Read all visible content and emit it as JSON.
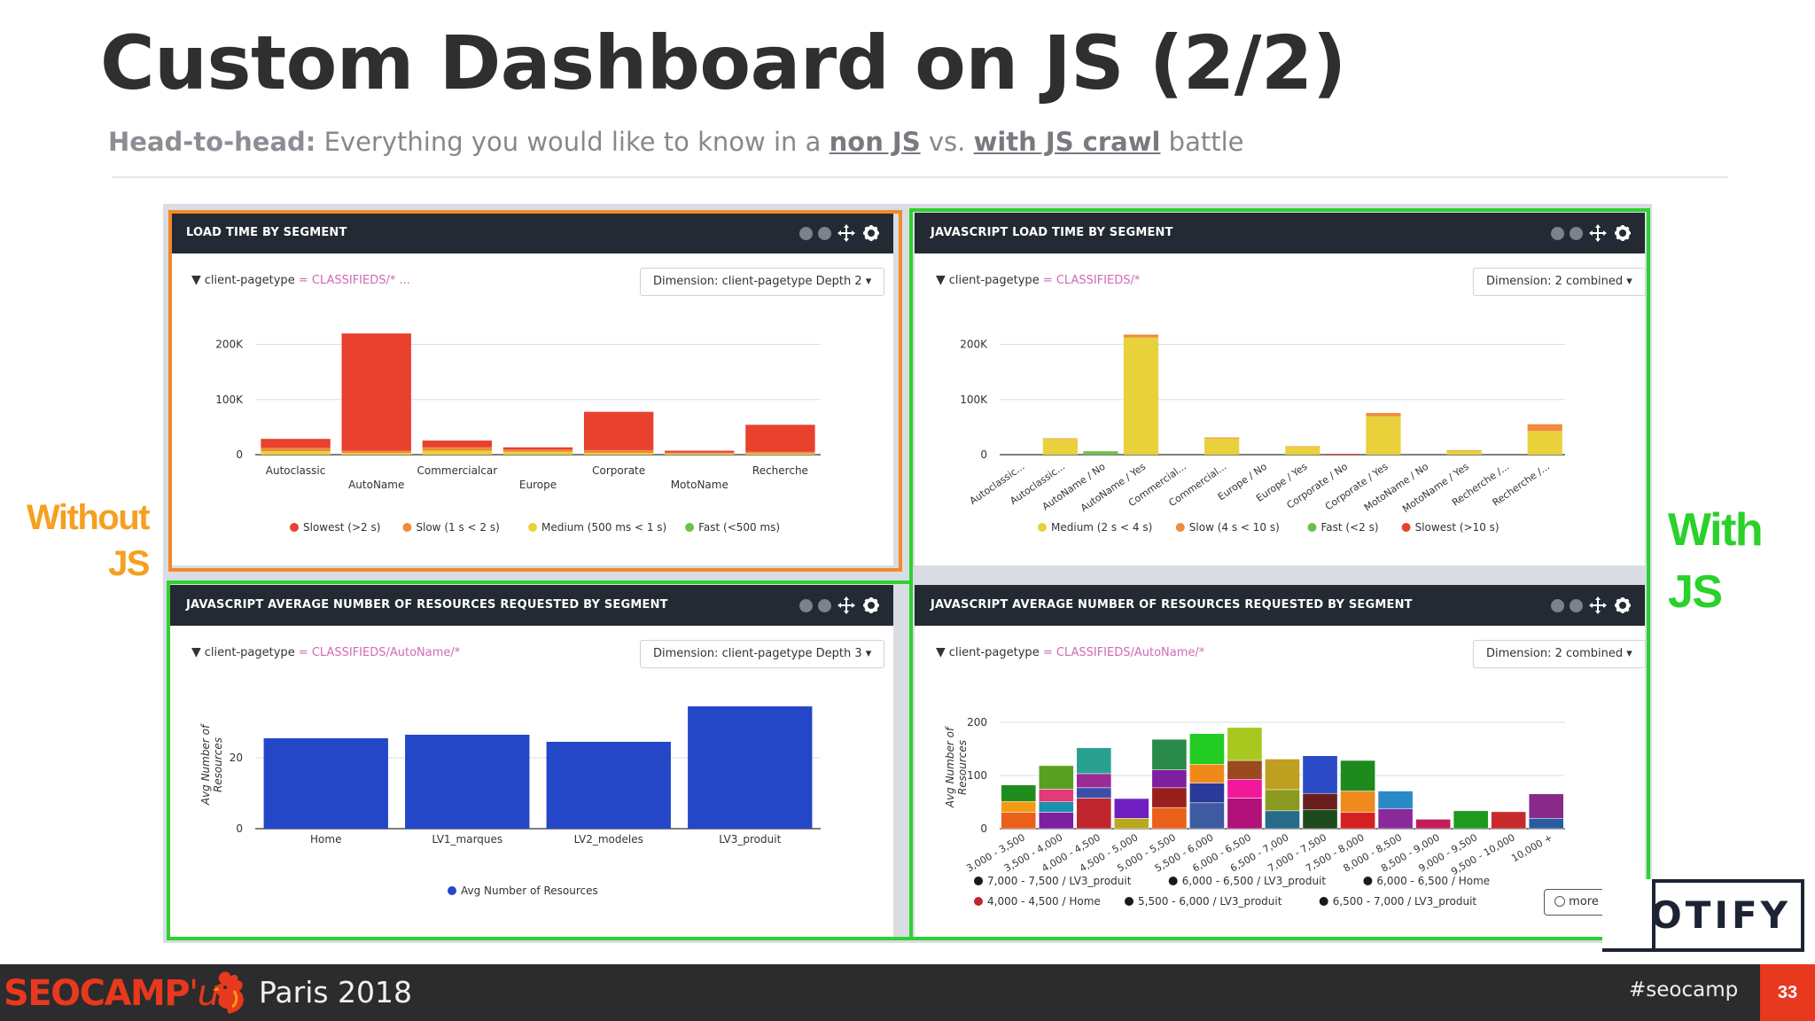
{
  "slide": {
    "title": "Custom Dashboard on JS (2/2)",
    "subtitle": {
      "lead": "Head-to-head:",
      "text1": " Everything you would like to know in a ",
      "link1": "non JS",
      "text2": " vs. ",
      "link2": "with JS crawl",
      "text3": " battle"
    },
    "label_without_1": "Without",
    "label_without_2": "JS",
    "label_with_1": "With",
    "label_with_2": "JS",
    "colors": {
      "orange_frame": "#f08a2a",
      "green_frame": "#2fd12f",
      "brand_red": "#e8381d"
    }
  },
  "panels": {
    "p1": {
      "title": "LOAD TIME BY SEGMENT",
      "filter_key": "client-pagetype",
      "filter_value": "= CLASSIFIEDS/* ...",
      "dimension": "Dimension: client-pagetype Depth 2 ▾"
    },
    "p2": {
      "title": "JAVASCRIPT LOAD TIME BY SEGMENT",
      "filter_key": "client-pagetype",
      "filter_value": "= CLASSIFIEDS/*",
      "dimension": "Dimension: 2 combined ▾"
    },
    "p3": {
      "title": "JAVASCRIPT AVERAGE NUMBER OF RESOURCES REQUESTED BY SEGMENT",
      "filter_key": "client-pagetype",
      "filter_value": "= CLASSIFIEDS/AutoName/*",
      "dimension": "Dimension: client-pagetype Depth 3 ▾"
    },
    "p4": {
      "title": "JAVASCRIPT AVERAGE NUMBER OF RESOURCES REQUESTED BY SEGMENT",
      "filter_key": "client-pagetype",
      "filter_value": "= CLASSIFIEDS/AutoName/*",
      "dimension": "Dimension: 2 combined ▾",
      "more_label": "more"
    }
  },
  "chart_data": [
    {
      "type": "bar",
      "stacked": true,
      "title": "LOAD TIME BY SEGMENT",
      "categories": [
        "Autoclassic",
        "AutoName",
        "Commercialcar",
        "Europe",
        "Corporate",
        "MotoName",
        "Recherche"
      ],
      "yticks": [
        "0",
        "100K",
        "200K"
      ],
      "ylim": [
        0,
        225000
      ],
      "legend": "bottom",
      "series": [
        {
          "name": "Fast (<500 ms)",
          "color": "#6cc04a",
          "values": [
            0,
            0,
            0,
            0,
            0,
            0,
            0
          ]
        },
        {
          "name": "Medium (500 ms < 1 s)",
          "color": "#e8d13a",
          "values": [
            6000,
            3000,
            7000,
            5000,
            3000,
            2000,
            2000
          ]
        },
        {
          "name": "Slow (1 s < 2 s)",
          "color": "#f08a3c",
          "values": [
            6000,
            4000,
            6000,
            4000,
            5000,
            1500,
            3000
          ]
        },
        {
          "name": "Slowest (>2 s)",
          "color": "#e8412e",
          "values": [
            16000,
            208000,
            12000,
            4000,
            68000,
            3500,
            48000
          ]
        }
      ]
    },
    {
      "type": "bar",
      "stacked": true,
      "title": "JAVASCRIPT LOAD TIME BY SEGMENT",
      "categories": [
        "Autoclassic...",
        "Autoclassic...",
        "AutoName / No",
        "AutoName / Yes",
        "Commercial...",
        "Commercial...",
        "Europe / No",
        "Europe / Yes",
        "Corporate / No",
        "Corporate / Yes",
        "MotoName / No",
        "MotoName / Yes",
        "Recherche /...",
        "Recherche /..."
      ],
      "yticks": [
        "0",
        "100K",
        "200K"
      ],
      "ylim": [
        0,
        225000
      ],
      "legend": "bottom",
      "series": [
        {
          "name": "Medium (2 s < 4 s)",
          "color": "#e8d13a",
          "values": [
            0,
            28000,
            0,
            208000,
            0,
            29000,
            0,
            14000,
            0,
            68000,
            0,
            7000,
            0,
            42000
          ]
        },
        {
          "name": "Slow (4 s < 10 s)",
          "color": "#f08a3c",
          "values": [
            0,
            1000,
            0,
            5000,
            0,
            1500,
            0,
            1000,
            0,
            6000,
            0,
            1000,
            0,
            12000
          ]
        },
        {
          "name": "Fast (<2 s)",
          "color": "#6cc04a",
          "values": [
            0,
            0,
            6000,
            0,
            0,
            0,
            0,
            0,
            0,
            0,
            0,
            0,
            0,
            0
          ]
        },
        {
          "name": "Slowest (>10 s)",
          "color": "#e8412e",
          "values": [
            0,
            0,
            0,
            0,
            0,
            0,
            0,
            0,
            1500,
            0,
            0,
            0,
            0,
            0
          ]
        }
      ]
    },
    {
      "type": "bar",
      "title": "JAVASCRIPT AVERAGE NUMBER OF RESOURCES REQUESTED BY SEGMENT",
      "categories": [
        "Home",
        "LV1_marques",
        "LV2_modeles",
        "LV3_produit"
      ],
      "ylabel": "Avg Number of Resources",
      "yticks": [
        "0",
        "20"
      ],
      "ylim": [
        0,
        36
      ],
      "legend": "bottom",
      "series": [
        {
          "name": "Avg Number of Resources",
          "color": "#2447c8",
          "values": [
            25.5,
            26.5,
            24.5,
            34.5
          ]
        }
      ]
    },
    {
      "type": "bar",
      "stacked": true,
      "title": "JAVASCRIPT AVERAGE NUMBER OF RESOURCES REQUESTED BY SEGMENT",
      "categories": [
        "3,000 - 3,500",
        "3,500 - 4,000",
        "4,000 - 4,500",
        "4,500 - 5,000",
        "5,000 - 5,500",
        "5,500 - 6,000",
        "6,000 - 6,500",
        "6,500 - 7,000",
        "7,000 - 7,500",
        "7,500 - 8,000",
        "8,000 - 8,500",
        "8,500 - 9,000",
        "9,000 - 9,500",
        "9,500 - 10,000",
        "10,000 +"
      ],
      "ylabel": "Avg Number of Resources",
      "yticks": [
        "0",
        "100",
        "200"
      ],
      "ylim": [
        0,
        230
      ],
      "legend": "bottom",
      "legend_entries": [
        {
          "name": "7,000 - 7,500 / LV3_produit",
          "color": "#1a1a1a"
        },
        {
          "name": "6,000 - 6,500 / LV3_produit",
          "color": "#1a1a1a"
        },
        {
          "name": "6,000 - 6,500 / Home",
          "color": "#1a1a1a"
        },
        {
          "name": "4,000 - 4,500 / Home",
          "color": "#c0262e"
        },
        {
          "name": "5,500 - 6,000 / LV3_produit",
          "color": "#1a1a1a"
        },
        {
          "name": "6,500 - 7,000 / LV3_produit",
          "color": "#1a1a1a"
        }
      ],
      "stacks": [
        [
          {
            "v": 35,
            "c": "#e8601a"
          },
          {
            "v": 23,
            "c": "#f29b17"
          },
          {
            "v": 35,
            "c": "#1e8c1e"
          }
        ],
        [
          {
            "v": 35,
            "c": "#7e1fa0"
          },
          {
            "v": 22,
            "c": "#1d8fb0"
          },
          {
            "v": 27,
            "c": "#e23b78"
          },
          {
            "v": 50,
            "c": "#5aa020"
          }
        ],
        [
          {
            "v": 65,
            "c": "#c0262e"
          },
          {
            "v": 22,
            "c": "#3b4fa8"
          },
          {
            "v": 30,
            "c": "#9b2c95"
          },
          {
            "v": 55,
            "c": "#2aa090"
          }
        ],
        [
          {
            "v": 22,
            "c": "#b9a820"
          },
          {
            "v": 42,
            "c": "#6f1fc0"
          }
        ],
        [
          {
            "v": 45,
            "c": "#e8601a"
          },
          {
            "v": 42,
            "c": "#9b1e1e"
          },
          {
            "v": 38,
            "c": "#7e1fa0"
          },
          {
            "v": 65,
            "c": "#2a8a4a"
          }
        ],
        [
          {
            "v": 55,
            "c": "#3e5aa0"
          },
          {
            "v": 42,
            "c": "#2a3a9a"
          },
          {
            "v": 40,
            "c": "#ef8a18"
          },
          {
            "v": 65,
            "c": "#22cc22"
          }
        ],
        [
          {
            "v": 65,
            "c": "#b0127a"
          },
          {
            "v": 40,
            "c": "#f2189a"
          },
          {
            "v": 40,
            "c": "#9b4a1e"
          },
          {
            "v": 70,
            "c": "#a8c820"
          }
        ],
        [
          {
            "v": 38,
            "c": "#276b8a"
          },
          {
            "v": 45,
            "c": "#8a9a20"
          },
          {
            "v": 65,
            "c": "#bfa020"
          }
        ],
        [
          {
            "v": 40,
            "c": "#1c4a1c"
          },
          {
            "v": 35,
            "c": "#6a1f1f"
          },
          {
            "v": 80,
            "c": "#2a4ac8"
          }
        ],
        [
          {
            "v": 35,
            "c": "#d62020"
          },
          {
            "v": 45,
            "c": "#f08a1c"
          },
          {
            "v": 65,
            "c": "#1e8a1e"
          }
        ],
        [
          {
            "v": 42,
            "c": "#8a2a9a"
          },
          {
            "v": 38,
            "c": "#2a8ac8"
          }
        ],
        [
          {
            "v": 20,
            "c": "#c21d5a"
          }
        ],
        [
          {
            "v": 38,
            "c": "#1f9a1f"
          }
        ],
        [
          {
            "v": 36,
            "c": "#c62a2a"
          }
        ],
        [
          {
            "v": 22,
            "c": "#2a5aa0"
          },
          {
            "v": 52,
            "c": "#8a2a8a"
          }
        ]
      ]
    }
  ],
  "footer": {
    "brand_seo": "SEOCAMP",
    "brand_us": "'us",
    "event": "Paris 2018",
    "hashtag": "#seocamp",
    "page": "33",
    "logo": "OTIFY"
  }
}
